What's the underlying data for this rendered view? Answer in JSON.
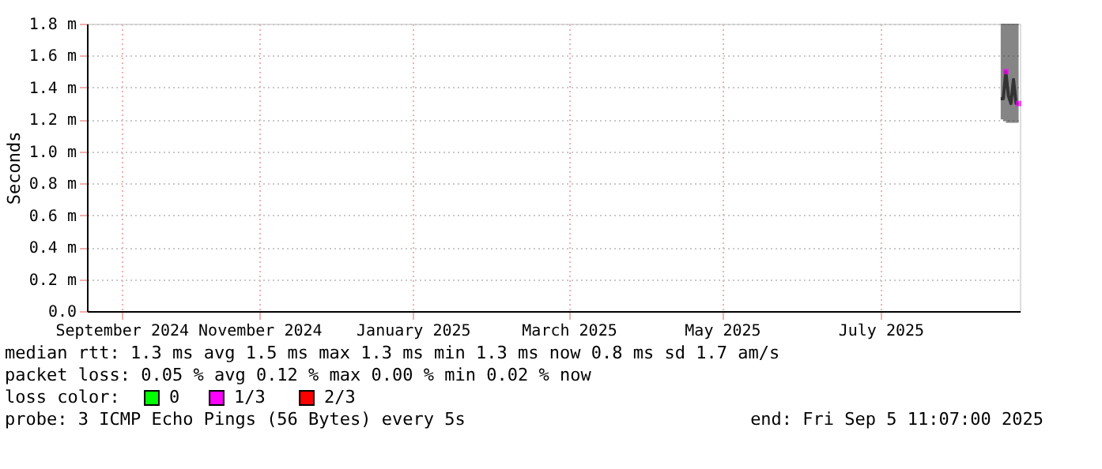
{
  "chart_data": {
    "type": "line",
    "ylabel": "Seconds",
    "legend_title": "loss color:",
    "legend": "bottom",
    "grid": true,
    "xlim": [
      "2024-09-05T11:07",
      "2025-09-05T11:07"
    ],
    "xticks": [
      {
        "value": "2024-09-19",
        "label": "September 2024"
      },
      {
        "value": "2024-11-12",
        "label": "November 2024"
      },
      {
        "value": "2025-01-11",
        "label": "January 2025"
      },
      {
        "value": "2025-03-13",
        "label": "March 2025"
      },
      {
        "value": "2025-05-12",
        "label": "May 2025"
      },
      {
        "value": "2025-07-13",
        "label": "July 2025"
      }
    ],
    "ylim": [
      0,
      1.8
    ],
    "yticks": [
      {
        "value": 0,
        "label": "0.0"
      },
      {
        "value": 0.2,
        "label": "0.2 m"
      },
      {
        "value": 0.4,
        "label": "0.4 m"
      },
      {
        "value": 0.6,
        "label": "0.6 m"
      },
      {
        "value": 0.8,
        "label": "0.8 m"
      },
      {
        "value": 1.0,
        "label": "1.0 m"
      },
      {
        "value": 1.2,
        "label": "1.2 m"
      },
      {
        "value": 1.4,
        "label": "1.4 m"
      },
      {
        "value": 1.6,
        "label": "1.6 m"
      },
      {
        "value": 1.8,
        "label": "1.8 m"
      }
    ],
    "x": [
      "2025-08-29",
      "2025-08-30",
      "2025-08-31",
      "2025-09-01",
      "2025-09-02",
      "2025-09-03",
      "2025-09-04",
      "2025-09-05"
    ],
    "series": [
      {
        "type": "line",
        "color": "#333333",
        "values": [
          1.33,
          1.33,
          1.5,
          1.35,
          1.3,
          1.45,
          1.3,
          1.3
        ],
        "lower": [
          1.2,
          1.19,
          1.18,
          1.18,
          1.18,
          1.18,
          1.18,
          1.2
        ],
        "upper": [
          1.8,
          1.8,
          1.8,
          1.8,
          1.8,
          1.8,
          1.8,
          1.8
        ]
      },
      {
        "type": "scatter",
        "name": "0",
        "color": "#00ff00",
        "values": [
          null,
          null,
          null,
          null,
          null,
          null,
          null,
          null
        ]
      },
      {
        "type": "scatter",
        "name": "1/3",
        "color": "#ff00ff",
        "values": [
          null,
          null,
          1.5,
          null,
          null,
          null,
          null,
          1.3
        ]
      },
      {
        "type": "scatter",
        "name": "2/3",
        "color": "#ff0000",
        "values": [
          null,
          null,
          null,
          null,
          null,
          null,
          null,
          null
        ]
      }
    ],
    "annotations": [
      "median rtt:  1.3 ms avg  1.5 ms max  1.3 ms min  1.3 ms now  0.8 ms sd  1.7   am/s",
      "packet loss: 0.05 % avg  0.12 % max  0.00 % min  0.02 % now",
      "probe:       3 ICMP Echo Pings (56 Bytes) every 5s",
      "end: Fri Sep  5 11:07:00 2025"
    ]
  }
}
